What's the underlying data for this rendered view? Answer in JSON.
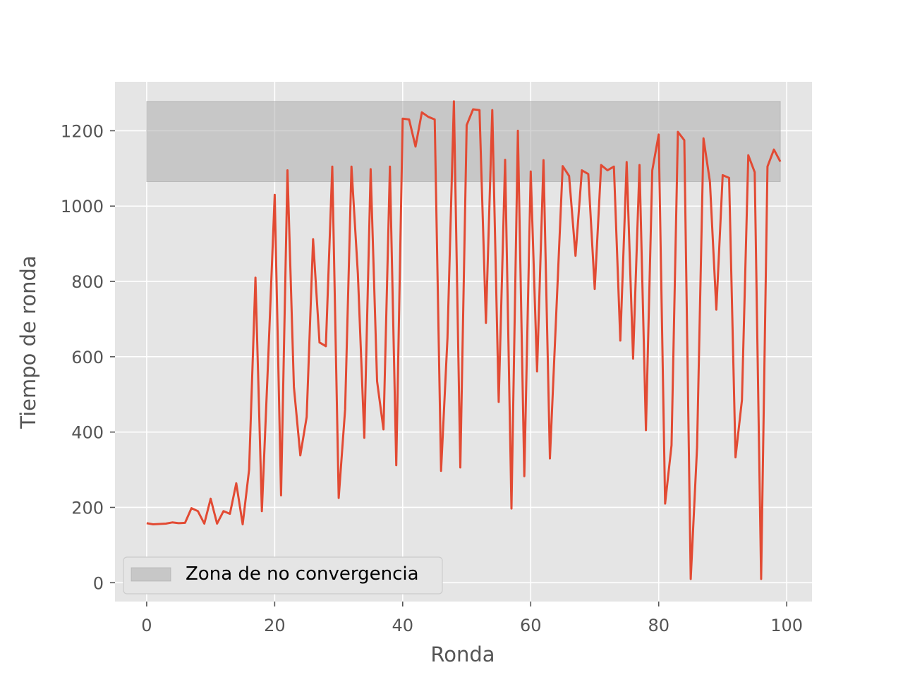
{
  "chart_data": {
    "type": "line",
    "title": "",
    "xlabel": "Ronda",
    "ylabel": "Tiempo de ronda",
    "xlim": [
      -4.95,
      103.95
    ],
    "ylim": [
      -50,
      1330
    ],
    "x_ticks": [
      0,
      20,
      40,
      60,
      80,
      100
    ],
    "y_ticks": [
      0,
      200,
      400,
      600,
      800,
      1000,
      1200
    ],
    "grid": true,
    "legend_position": "lower-left",
    "colors": {
      "line": "#e24a33",
      "band": "#a9a9a9",
      "plot_bg": "#e5e5e5",
      "grid": "#ffffff"
    },
    "band": {
      "label": "Zona de no convergencia",
      "x_range": [
        0,
        99
      ],
      "y_range": [
        1065,
        1278
      ]
    },
    "series": [
      {
        "x": [
          0,
          1,
          2,
          3,
          4,
          5,
          6,
          7,
          8,
          9,
          10,
          11,
          12,
          13,
          14,
          15,
          16,
          17,
          18,
          19,
          20,
          21,
          22,
          23,
          24,
          25,
          26,
          27,
          28,
          29,
          30,
          31,
          32,
          33,
          34,
          35,
          36,
          37,
          38,
          39,
          40,
          41,
          42,
          43,
          44,
          45,
          46,
          47,
          48,
          49,
          50,
          51,
          52,
          53,
          54,
          55,
          56,
          57,
          58,
          59,
          60,
          61,
          62,
          63,
          64,
          65,
          66,
          67,
          68,
          69,
          70,
          71,
          72,
          73,
          74,
          75,
          76,
          77,
          78,
          79,
          80,
          81,
          82,
          83,
          84,
          85,
          86,
          87,
          88,
          89,
          90,
          91,
          92,
          93,
          94,
          95,
          96,
          97,
          98,
          99
        ],
        "values": [
          158,
          155,
          156,
          157,
          160,
          158,
          159,
          198,
          190,
          157,
          223,
          157,
          190,
          183,
          264,
          155,
          300,
          810,
          190,
          600,
          1030,
          232,
          1095,
          520,
          338,
          440,
          912,
          638,
          628,
          1105,
          225,
          460,
          1105,
          820,
          385,
          1098,
          535,
          407,
          1105,
          312,
          1232,
          1230,
          1158,
          1249,
          1237,
          1230,
          297,
          650,
          1278,
          306,
          1215,
          1257,
          1255,
          690,
          1255,
          480,
          1123,
          197,
          1200,
          283,
          1092,
          561,
          1122,
          330,
          720,
          1106,
          1080,
          868,
          1095,
          1085,
          780,
          1109,
          1095,
          1105,
          643,
          1117,
          595,
          1109,
          405,
          1095,
          1190,
          210,
          365,
          1197,
          1175,
          10,
          360,
          1180,
          1065,
          725,
          1082,
          1075,
          333,
          485,
          1135,
          1090,
          10,
          1105,
          1150,
          1118
        ]
      }
    ]
  }
}
